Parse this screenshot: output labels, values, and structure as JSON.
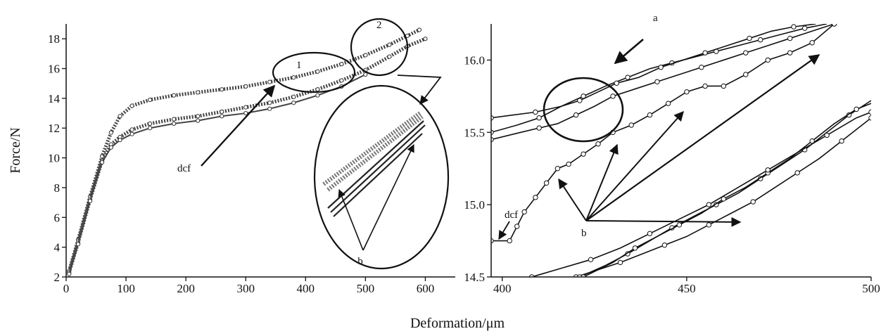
{
  "figure": {
    "ylabel": "Force/N",
    "xlabel": "Deformation/μm"
  },
  "chart_data": [
    {
      "type": "line",
      "panel": "left",
      "ylabel": "Force/N",
      "xlabel": "Deformation/μm",
      "xlim": [
        0,
        650
      ],
      "ylim": [
        2,
        19
      ],
      "xticks": [
        0,
        100,
        200,
        300,
        400,
        500,
        600
      ],
      "yticks": [
        2,
        4,
        6,
        8,
        10,
        12,
        14,
        16,
        18
      ],
      "series": [
        {
          "x": [
            5,
            20,
            40,
            60,
            75,
            90,
            110,
            140,
            180,
            220,
            260,
            300,
            340,
            380,
            420,
            460,
            500,
            540,
            570,
            590
          ],
          "y": [
            2.4,
            4.5,
            7.4,
            10.1,
            11.7,
            12.8,
            13.5,
            13.9,
            14.2,
            14.4,
            14.6,
            14.8,
            15.1,
            15.4,
            15.8,
            16.3,
            16.9,
            17.6,
            18.2,
            18.6
          ]
        },
        {
          "x": [
            5,
            20,
            40,
            60,
            75,
            90,
            110,
            140,
            180,
            220,
            260,
            300,
            340,
            380,
            420,
            460,
            500,
            540,
            570,
            600
          ],
          "y": [
            2.3,
            4.3,
            7.2,
            9.8,
            10.9,
            11.4,
            11.9,
            12.3,
            12.6,
            12.8,
            13.1,
            13.4,
            13.7,
            14.1,
            14.6,
            15.2,
            15.9,
            16.8,
            17.5,
            18.0
          ]
        },
        {
          "x": [
            5,
            20,
            40,
            60,
            75,
            90,
            110,
            140,
            180,
            220,
            260,
            300,
            340,
            380,
            420,
            460,
            500
          ],
          "y": [
            2.2,
            4.2,
            7.1,
            9.7,
            10.7,
            11.2,
            11.6,
            12.0,
            12.3,
            12.5,
            12.8,
            13.0,
            13.3,
            13.7,
            14.2,
            14.8,
            15.6
          ]
        }
      ],
      "annotations": [
        {
          "text": "1"
        },
        {
          "text": "2"
        },
        {
          "text": "dcf"
        },
        {
          "text": "b"
        }
      ]
    },
    {
      "type": "line",
      "panel": "right",
      "xlim": [
        397,
        500
      ],
      "ylim": [
        14.5,
        16.25
      ],
      "xticks": [
        400,
        450,
        500
      ],
      "yticks": [
        14.5,
        15.0,
        15.5,
        16.0
      ],
      "series": [
        {
          "x": [
            397,
            402,
            404,
            406,
            409,
            412,
            415,
            418,
            422,
            426,
            430,
            435,
            440,
            445,
            450,
            455,
            460,
            466,
            472,
            478,
            484,
            490
          ],
          "y": [
            14.75,
            14.75,
            14.85,
            14.95,
            15.05,
            15.15,
            15.25,
            15.28,
            15.35,
            15.42,
            15.5,
            15.55,
            15.62,
            15.7,
            15.78,
            15.82,
            15.82,
            15.9,
            16.0,
            16.05,
            16.12,
            16.25
          ]
        },
        {
          "x": [
            397,
            405,
            410,
            415,
            420,
            425,
            430,
            436,
            442,
            448,
            454,
            460,
            466,
            472,
            478,
            484,
            490
          ],
          "y": [
            15.45,
            15.5,
            15.53,
            15.56,
            15.62,
            15.68,
            15.75,
            15.8,
            15.85,
            15.9,
            15.95,
            16.0,
            16.05,
            16.1,
            16.15,
            16.2,
            16.25
          ]
        },
        {
          "x": [
            397,
            403,
            409,
            416,
            422,
            428,
            434,
            440,
            446,
            452,
            458,
            464,
            470,
            476,
            482,
            488
          ],
          "y": [
            15.6,
            15.62,
            15.64,
            15.68,
            15.75,
            15.82,
            15.88,
            15.94,
            15.98,
            16.02,
            16.06,
            16.1,
            16.14,
            16.18,
            16.22,
            16.25
          ]
        },
        {
          "x": [
            397,
            404,
            410,
            416,
            421,
            426,
            431,
            437,
            443,
            449,
            455,
            461,
            467,
            473,
            479,
            485
          ],
          "y": [
            15.5,
            15.55,
            15.6,
            15.68,
            15.72,
            15.78,
            15.84,
            15.88,
            15.95,
            16.0,
            16.05,
            16.1,
            16.15,
            16.2,
            16.23,
            16.25
          ]
        },
        {
          "x": [
            420,
            426,
            432,
            438,
            444,
            450,
            456,
            462,
            468,
            474,
            480,
            486,
            492,
            498,
            500
          ],
          "y": [
            14.5,
            14.55,
            14.6,
            14.66,
            14.72,
            14.78,
            14.86,
            14.94,
            15.02,
            15.12,
            15.22,
            15.32,
            15.44,
            15.56,
            15.6
          ]
        },
        {
          "x": [
            421,
            428,
            434,
            440,
            446,
            452,
            458,
            464,
            470,
            476,
            482,
            488,
            494,
            500
          ],
          "y": [
            14.5,
            14.58,
            14.66,
            14.75,
            14.84,
            14.92,
            15.0,
            15.08,
            15.18,
            15.28,
            15.38,
            15.5,
            15.62,
            15.72
          ]
        },
        {
          "x": [
            422,
            430,
            436,
            442,
            448,
            454,
            460,
            466,
            472,
            478,
            484,
            490,
            496,
            500
          ],
          "y": [
            14.5,
            14.6,
            14.7,
            14.78,
            14.86,
            14.94,
            15.04,
            15.12,
            15.22,
            15.32,
            15.44,
            15.56,
            15.66,
            15.7
          ]
        },
        {
          "x": [
            408,
            416,
            424,
            432,
            440,
            448,
            456,
            464,
            472,
            480,
            488,
            496,
            500
          ],
          "y": [
            14.5,
            14.56,
            14.62,
            14.7,
            14.8,
            14.9,
            15.0,
            15.12,
            15.24,
            15.36,
            15.48,
            15.6,
            15.64
          ]
        }
      ],
      "annotations": [
        {
          "text": "a"
        },
        {
          "text": "dcf"
        },
        {
          "text": "b"
        }
      ]
    }
  ]
}
